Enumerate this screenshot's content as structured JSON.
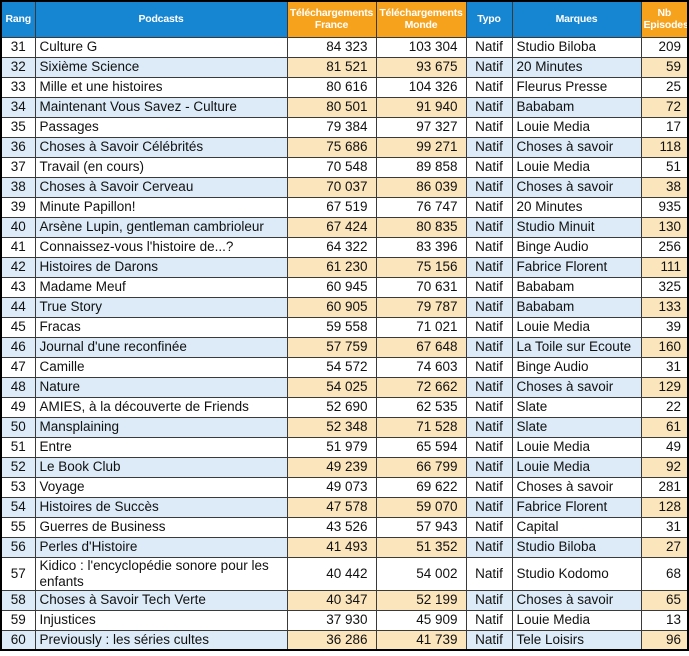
{
  "table": {
    "columns": [
      {
        "key": "rank",
        "label": "Rang"
      },
      {
        "key": "podcast",
        "label": "Podcasts"
      },
      {
        "key": "dl_france",
        "label": "Téléchargements France"
      },
      {
        "key": "dl_monde",
        "label": "Téléchargements Monde"
      },
      {
        "key": "typo",
        "label": "Typo"
      },
      {
        "key": "marque",
        "label": "Marques"
      },
      {
        "key": "episodes",
        "label": "Nb Episodes"
      }
    ],
    "rows": [
      [
        31,
        "Culture G",
        "84 323",
        "103 304",
        "Natif",
        "Studio Biloba",
        "209"
      ],
      [
        32,
        "Sixième Science",
        "81 521",
        "93 675",
        "Natif",
        "20 Minutes",
        "59"
      ],
      [
        33,
        "Mille et une histoires",
        "80 616",
        "104 326",
        "Natif",
        "Fleurus Presse",
        "25"
      ],
      [
        34,
        "Maintenant Vous Savez - Culture",
        "80 501",
        "91 940",
        "Natif",
        "Bababam",
        "72"
      ],
      [
        35,
        "Passages",
        "79 384",
        "97 327",
        "Natif",
        "Louie Media",
        "17"
      ],
      [
        36,
        "Choses à Savoir Célébrités",
        "75 686",
        "99 271",
        "Natif",
        "Choses à savoir",
        "118"
      ],
      [
        37,
        "Travail (en cours)",
        "70 548",
        "89 858",
        "Natif",
        "Louie Media",
        "51"
      ],
      [
        38,
        "Choses à Savoir Cerveau",
        "70 037",
        "86 039",
        "Natif",
        "Choses à savoir",
        "38"
      ],
      [
        39,
        "Minute Papillon!",
        "67 519",
        "76 747",
        "Natif",
        "20 Minutes",
        "935"
      ],
      [
        40,
        "Arsène Lupin, gentleman cambrioleur",
        "67 424",
        "80 835",
        "Natif",
        "Studio Minuit",
        "130"
      ],
      [
        41,
        "Connaissez-vous l'histoire de...?",
        "64 322",
        "83 396",
        "Natif",
        "Binge Audio",
        "256"
      ],
      [
        42,
        "Histoires de Darons",
        "61 230",
        "75 156",
        "Natif",
        "Fabrice Florent",
        "111"
      ],
      [
        43,
        "Madame Meuf",
        "60 945",
        "70 631",
        "Natif",
        "Bababam",
        "325"
      ],
      [
        44,
        "True Story",
        "60 905",
        "79 787",
        "Natif",
        "Bababam",
        "133"
      ],
      [
        45,
        "Fracas",
        "59 558",
        "71 021",
        "Natif",
        "Louie Media",
        "39"
      ],
      [
        46,
        "Journal d'une reconfinée",
        "57 759",
        "67 648",
        "Natif",
        "La Toile sur Ecoute",
        "160"
      ],
      [
        47,
        "Camille",
        "54 572",
        "74 603",
        "Natif",
        "Binge Audio",
        "31"
      ],
      [
        48,
        "Nature",
        "54 025",
        "72 662",
        "Natif",
        "Choses à savoir",
        "129"
      ],
      [
        49,
        "AMIES, à la découverte de Friends",
        "52 690",
        "62 535",
        "Natif",
        "Slate",
        "22"
      ],
      [
        50,
        "Mansplaining",
        "52 348",
        "71 528",
        "Natif",
        "Slate",
        "61"
      ],
      [
        51,
        "Entre",
        "51 979",
        "65 594",
        "Natif",
        "Louie Media",
        "49"
      ],
      [
        52,
        "Le Book Club",
        "49 239",
        "66 799",
        "Natif",
        "Louie Media",
        "92"
      ],
      [
        53,
        "Voyage",
        "49 073",
        "69 622",
        "Natif",
        "Choses à savoir",
        "281"
      ],
      [
        54,
        "Histoires de Succès",
        "47 578",
        "59 070",
        "Natif",
        "Fabrice Florent",
        "128"
      ],
      [
        55,
        "Guerres de Business",
        "43 526",
        "57 943",
        "Natif",
        "Capital",
        "31"
      ],
      [
        56,
        "Perles d'Histoire",
        "41 493",
        "51 352",
        "Natif",
        "Studio Biloba",
        "27"
      ],
      [
        57,
        "Kidico : l'encyclopédie sonore pour les enfants",
        "40 442",
        "54 002",
        "Natif",
        "Studio Kodomo",
        "68"
      ],
      [
        58,
        "Choses à Savoir Tech Verte",
        "40 347",
        "52 199",
        "Natif",
        "Choses à savoir",
        "65"
      ],
      [
        59,
        "Injustices",
        "37 930",
        "45 909",
        "Natif",
        "Louie Media",
        "13"
      ],
      [
        60,
        "Previously : les séries cultes",
        "36 286",
        "41 739",
        "Natif",
        "Tele Loisirs",
        "96"
      ]
    ]
  },
  "colors": {
    "header_blue": "#1786d2",
    "header_orange": "#f6a21c",
    "row_shade_blue": "#dcebf7",
    "row_shade_orange": "#fbe5bc",
    "border": "#3a3a3a",
    "header_text": "#ffffff",
    "body_text": "#111111"
  }
}
